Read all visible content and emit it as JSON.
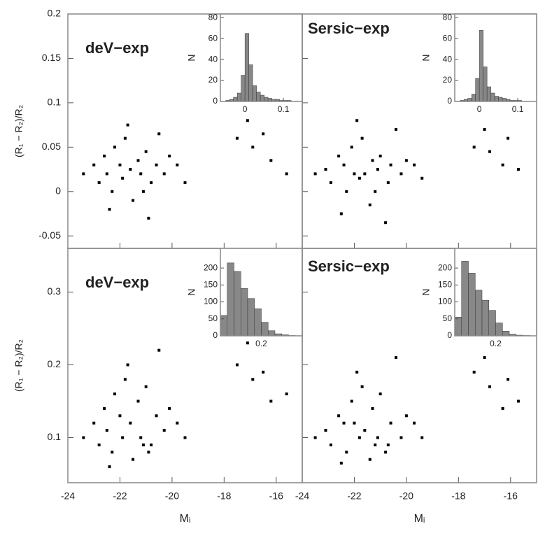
{
  "chart_data": [
    {
      "type": "scatter",
      "label": "deV−exp",
      "ylabel": "(R₁ − R₂)/R₂",
      "color": "#000",
      "xlim": [
        -24,
        -15
      ],
      "ylim": [
        -0.064,
        0.2
      ],
      "xticks": [
        -24,
        -22,
        -20,
        -18,
        -16
      ],
      "yticks": [
        -0.05,
        0,
        0.05,
        0.1,
        0.15,
        0.2
      ],
      "x": [
        -23.4,
        -23,
        -22.8,
        -22.6,
        -22.5,
        -22.3,
        -22.2,
        -22,
        -21.9,
        -21.8,
        -21.6,
        -21.5,
        -21.3,
        -21.2,
        -21,
        -20.8,
        -20.6,
        -20.5,
        -20.3,
        -20.1,
        -19.8,
        -19.5,
        -22.4,
        -21.7,
        -21.1,
        -20.9,
        -17.5,
        -16.9,
        -16.2,
        -15.6,
        -17.1,
        -16.5
      ],
      "y": [
        0.02,
        0.03,
        0.01,
        0.04,
        0.02,
        0,
        0.05,
        0.03,
        0.015,
        0.06,
        0.025,
        -0.01,
        0.035,
        0.02,
        0.045,
        0.01,
        0.03,
        0.065,
        0.02,
        0.04,
        0.03,
        0.01,
        -0.02,
        0.075,
        0,
        -0.03,
        0.06,
        0.05,
        0.035,
        0.02,
        0.08,
        0.065
      ],
      "inset": {
        "type": "histogram",
        "color": "#888",
        "ylabel": "N",
        "bins": [
          -0.06,
          -0.05,
          -0.04,
          -0.03,
          -0.02,
          -0.01,
          0,
          0.01,
          0.02,
          0.03,
          0.04,
          0.05,
          0.06,
          0.07,
          0.08,
          0.09,
          0.1,
          0.11,
          0.12,
          0.13,
          0.14
        ],
        "counts": [
          0,
          1,
          2,
          4,
          8,
          25,
          65,
          35,
          15,
          9,
          6,
          4,
          3,
          2,
          2,
          1,
          1,
          1,
          0,
          0
        ],
        "xlim": [
          -0.064,
          0.149
        ],
        "ylim": [
          0,
          83.5
        ],
        "xticks": [
          0,
          0.1
        ],
        "yticks": [
          0,
          20,
          40,
          60,
          80
        ]
      }
    },
    {
      "type": "scatter",
      "label": "Sersic−exp",
      "color": "#000",
      "xlim": [
        -24,
        -15
      ],
      "ylim": [
        -0.064,
        0.2
      ],
      "xticks": [
        -24,
        -22,
        -20,
        -18,
        -16
      ],
      "yticks": [
        -0.05,
        0,
        0.05,
        0.1,
        0.15,
        0.2
      ],
      "x": [
        -23.5,
        -23.1,
        -22.9,
        -22.6,
        -22.4,
        -22.3,
        -22.1,
        -22,
        -21.8,
        -21.7,
        -21.6,
        -21.4,
        -21.3,
        -21.1,
        -21,
        -20.7,
        -20.6,
        -20.4,
        -20.2,
        -20,
        -19.7,
        -19.4,
        -22.5,
        -21.9,
        -21.2,
        -20.8,
        -17.4,
        -16.8,
        -16.3,
        -15.7,
        -17,
        -16.1
      ],
      "y": [
        0.02,
        0.025,
        0.01,
        0.04,
        0.03,
        0,
        0.05,
        0.02,
        0.015,
        0.06,
        0.02,
        -0.015,
        0.035,
        0.025,
        0.04,
        0.01,
        0.03,
        0.07,
        0.02,
        0.035,
        0.03,
        0.015,
        -0.025,
        0.08,
        0,
        -0.035,
        0.05,
        0.045,
        0.03,
        0.025,
        0.07,
        0.06
      ],
      "inset": {
        "type": "histogram",
        "color": "#888",
        "ylabel": "N",
        "bins": [
          -0.06,
          -0.05,
          -0.04,
          -0.03,
          -0.02,
          -0.01,
          0,
          0.01,
          0.02,
          0.03,
          0.04,
          0.05,
          0.06,
          0.07,
          0.08,
          0.09,
          0.1,
          0.11,
          0.12,
          0.13,
          0.14
        ],
        "counts": [
          0,
          1,
          2,
          3,
          7,
          22,
          68,
          33,
          14,
          8,
          5,
          4,
          3,
          2,
          1,
          1,
          1,
          0,
          0,
          0
        ],
        "xlim": [
          -0.064,
          0.149
        ],
        "ylim": [
          0,
          83.5
        ],
        "xticks": [
          0,
          0.1
        ],
        "yticks": [
          0,
          20,
          40,
          60,
          80
        ]
      }
    },
    {
      "type": "scatter",
      "label": "deV−exp",
      "ylabel": "(R₁ − R₂)/R₂",
      "xlabel": "Mᵢ",
      "color": "#000",
      "xlim": [
        -24,
        -15
      ],
      "ylim": [
        0.038,
        0.36
      ],
      "xticks": [
        -24,
        -22,
        -20,
        -18,
        -16
      ],
      "yticks": [
        0.1,
        0.2,
        0.3
      ],
      "x": [
        -23.4,
        -23,
        -22.8,
        -22.6,
        -22.5,
        -22.3,
        -22.2,
        -22,
        -21.9,
        -21.8,
        -21.6,
        -21.5,
        -21.3,
        -21.2,
        -21,
        -20.8,
        -20.6,
        -20.5,
        -20.3,
        -20.1,
        -19.8,
        -19.5,
        -22.4,
        -21.7,
        -21.1,
        -20.9,
        -17.5,
        -16.9,
        -16.2,
        -15.6,
        -17.1,
        -16.5
      ],
      "y": [
        0.1,
        0.12,
        0.09,
        0.14,
        0.11,
        0.08,
        0.16,
        0.13,
        0.1,
        0.18,
        0.12,
        0.07,
        0.15,
        0.1,
        0.17,
        0.09,
        0.13,
        0.22,
        0.11,
        0.14,
        0.12,
        0.1,
        0.06,
        0.2,
        0.09,
        0.08,
        0.2,
        0.18,
        0.15,
        0.16,
        0.23,
        0.19
      ],
      "inset": {
        "type": "histogram",
        "color": "#888",
        "ylabel": "N",
        "bins": [
          0.05,
          0.075,
          0.1,
          0.125,
          0.15,
          0.175,
          0.2,
          0.225,
          0.25,
          0.275,
          0.3,
          0.325,
          0.35
        ],
        "counts": [
          60,
          215,
          190,
          140,
          110,
          80,
          40,
          15,
          6,
          3,
          1,
          0
        ],
        "xlim": [
          0.05,
          0.35
        ],
        "ylim": [
          0,
          258
        ],
        "xticks": [
          0.2
        ],
        "yticks": [
          0,
          50,
          100,
          150,
          200
        ]
      }
    },
    {
      "type": "scatter",
      "label": "Sersic−exp",
      "xlabel": "Mᵢ",
      "color": "#000",
      "xlim": [
        -24,
        -15
      ],
      "ylim": [
        0.038,
        0.36
      ],
      "xticks": [
        -24,
        -22,
        -20,
        -18,
        -16
      ],
      "yticks": [
        0.1,
        0.2,
        0.3
      ],
      "x": [
        -23.5,
        -23.1,
        -22.9,
        -22.6,
        -22.4,
        -22.3,
        -22.1,
        -22,
        -21.8,
        -21.7,
        -21.6,
        -21.4,
        -21.3,
        -21.1,
        -21,
        -20.7,
        -20.6,
        -20.4,
        -20.2,
        -20,
        -19.7,
        -19.4,
        -22.5,
        -21.9,
        -21.2,
        -20.8,
        -17.4,
        -16.8,
        -16.3,
        -15.7,
        -17,
        -16.1
      ],
      "y": [
        0.1,
        0.11,
        0.09,
        0.13,
        0.12,
        0.08,
        0.15,
        0.12,
        0.1,
        0.17,
        0.11,
        0.07,
        0.14,
        0.1,
        0.16,
        0.09,
        0.12,
        0.21,
        0.1,
        0.13,
        0.12,
        0.1,
        0.065,
        0.19,
        0.09,
        0.08,
        0.19,
        0.17,
        0.14,
        0.15,
        0.21,
        0.18
      ],
      "inset": {
        "type": "histogram",
        "color": "#888",
        "ylabel": "N",
        "bins": [
          0.05,
          0.075,
          0.1,
          0.125,
          0.15,
          0.175,
          0.2,
          0.225,
          0.25,
          0.275,
          0.3,
          0.325,
          0.35
        ],
        "counts": [
          55,
          220,
          185,
          135,
          105,
          75,
          38,
          14,
          5,
          2,
          1,
          0
        ],
        "xlim": [
          0.05,
          0.35
        ],
        "ylim": [
          0,
          258
        ],
        "xticks": [
          0.2
        ],
        "yticks": [
          0,
          50,
          100,
          150,
          200
        ]
      }
    }
  ]
}
